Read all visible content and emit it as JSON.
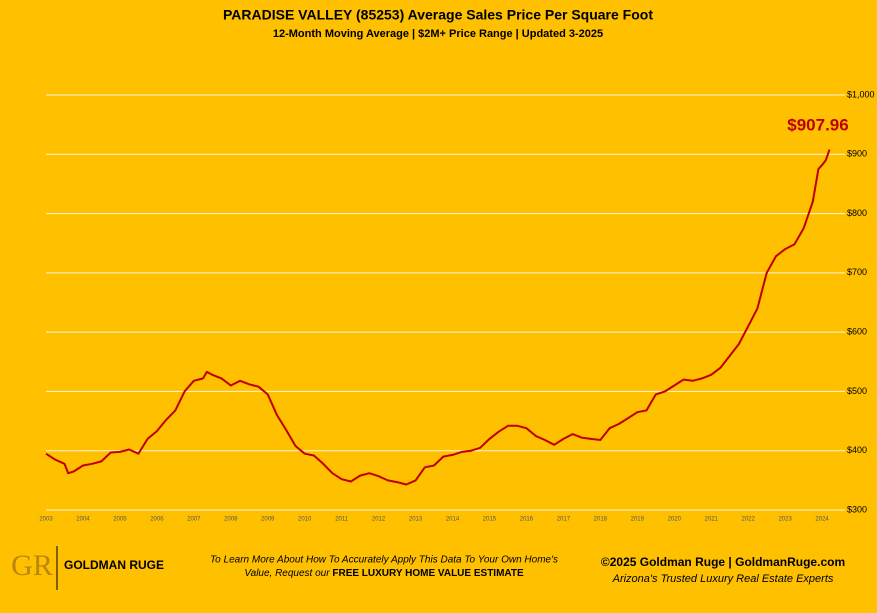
{
  "chart_data": {
    "type": "line",
    "title": "PARADISE VALLEY (85253) Average Sales Price Per Square Foot",
    "subtitle": "12-Month Moving Average | $2M+ Price Range | Updated 3-2025",
    "x": [
      2003.0,
      2003.25,
      2003.5,
      2003.6,
      2003.75,
      2004.0,
      2004.25,
      2004.5,
      2004.75,
      2005.0,
      2005.25,
      2005.5,
      2005.75,
      2006.0,
      2006.25,
      2006.5,
      2006.75,
      2007.0,
      2007.25,
      2007.35,
      2007.5,
      2007.75,
      2008.0,
      2008.25,
      2008.5,
      2008.75,
      2009.0,
      2009.25,
      2009.5,
      2009.75,
      2010.0,
      2010.25,
      2010.5,
      2010.75,
      2011.0,
      2011.25,
      2011.5,
      2011.75,
      2012.0,
      2012.25,
      2012.5,
      2012.75,
      2013.0,
      2013.25,
      2013.5,
      2013.75,
      2014.0,
      2014.25,
      2014.5,
      2014.75,
      2015.0,
      2015.25,
      2015.5,
      2015.75,
      2016.0,
      2016.25,
      2016.5,
      2016.75,
      2017.0,
      2017.25,
      2017.5,
      2017.75,
      2018.0,
      2018.25,
      2018.5,
      2018.75,
      2019.0,
      2019.25,
      2019.5,
      2019.75,
      2020.0,
      2020.25,
      2020.5,
      2020.75,
      2021.0,
      2021.25,
      2021.5,
      2021.75,
      2022.0,
      2022.25,
      2022.5,
      2022.75,
      2023.0,
      2023.25,
      2023.5,
      2023.75,
      2023.9,
      2024.0,
      2024.1,
      2024.2
    ],
    "series": [
      {
        "name": "Average Sales Price Per Square Foot",
        "color": "#c00000",
        "values": [
          395,
          385,
          378,
          362,
          365,
          375,
          378,
          382,
          397,
          398,
          402,
          395,
          420,
          433,
          452,
          468,
          500,
          518,
          522,
          533,
          528,
          522,
          510,
          518,
          512,
          508,
          495,
          460,
          435,
          408,
          395,
          392,
          378,
          362,
          352,
          348,
          358,
          362,
          357,
          350,
          347,
          343,
          350,
          372,
          375,
          390,
          393,
          398,
          400,
          405,
          420,
          432,
          442,
          442,
          438,
          425,
          418,
          410,
          420,
          428,
          422,
          420,
          418,
          438,
          445,
          455,
          465,
          468,
          495,
          500,
          510,
          520,
          518,
          522,
          528,
          540,
          560,
          580,
          610,
          640,
          700,
          728,
          740,
          748,
          775,
          820,
          875,
          882,
          890,
          907.96
        ]
      }
    ],
    "annotation": "$907.96",
    "xlim": [
      2003,
      2024.62
    ],
    "xticks": [
      2003,
      2004,
      2005,
      2006,
      2007,
      2008,
      2009,
      2010,
      2011,
      2012,
      2013,
      2014,
      2015,
      2016,
      2017,
      2018,
      2019,
      2020,
      2021,
      2022,
      2023,
      2024
    ],
    "ylim": [
      300,
      1000
    ],
    "yticks": [
      {
        "value": 300,
        "label": "$300"
      },
      {
        "value": 400,
        "label": "$400"
      },
      {
        "value": 500,
        "label": "$500"
      },
      {
        "value": 600,
        "label": "$600"
      },
      {
        "value": 700,
        "label": "$700"
      },
      {
        "value": 800,
        "label": "$800"
      },
      {
        "value": 900,
        "label": "$900"
      },
      {
        "value": 1000,
        "label": "$1,000"
      }
    ],
    "grid": true
  },
  "footer": {
    "logo": "GOLDMAN RUGE",
    "cta": [
      "To Learn More About How To Accurately Apply This Data To Your Own Home's",
      "Value, Request our ",
      "FREE LUXURY HOME VALUE ESTIMATE"
    ],
    "copyright": "©2025 Goldman Ruge  |  GoldmanRuge.com",
    "tagline": "Arizona's Trusted Luxury Real Estate Experts"
  }
}
